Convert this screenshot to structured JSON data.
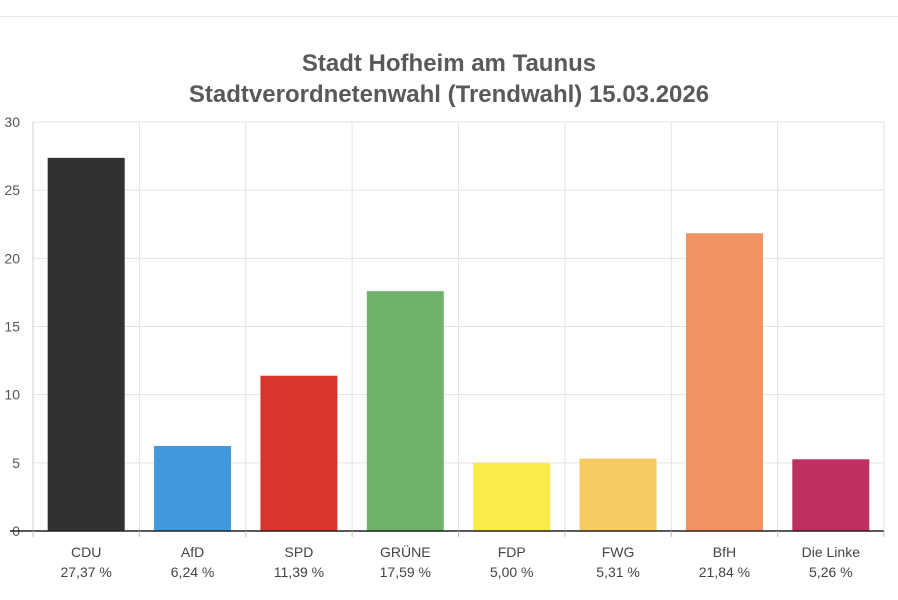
{
  "chart_data": {
    "type": "bar",
    "title": "Stadt Hofheim am Taunus",
    "subtitle": "Stadtverordnetenwahl (Trendwahl) 15.03.2026",
    "xlabel": "",
    "ylabel": "",
    "ylim": [
      0,
      30
    ],
    "yticks": [
      "0",
      "5",
      "10",
      "15",
      "20",
      "25",
      "30"
    ],
    "grid": true,
    "legend": "none",
    "categories": [
      "CDU",
      "AfD",
      "SPD",
      "GRÜNE",
      "FDP",
      "FWG",
      "BfH",
      "Die Linke"
    ],
    "values": [
      27.37,
      6.24,
      11.39,
      17.59,
      5.0,
      5.31,
      21.84,
      5.26
    ],
    "value_labels": [
      "27,37 %",
      "6,24 %",
      "11,39 %",
      "17,59 %",
      "5,00 %",
      "5,31 %",
      "21,84 %",
      "5,26 %"
    ],
    "colors": [
      "#323031",
      "#4198db",
      "#db3530",
      "#6fb36b",
      "#fbea4b",
      "#f5cb62",
      "#ef9361",
      "#be305d"
    ]
  }
}
